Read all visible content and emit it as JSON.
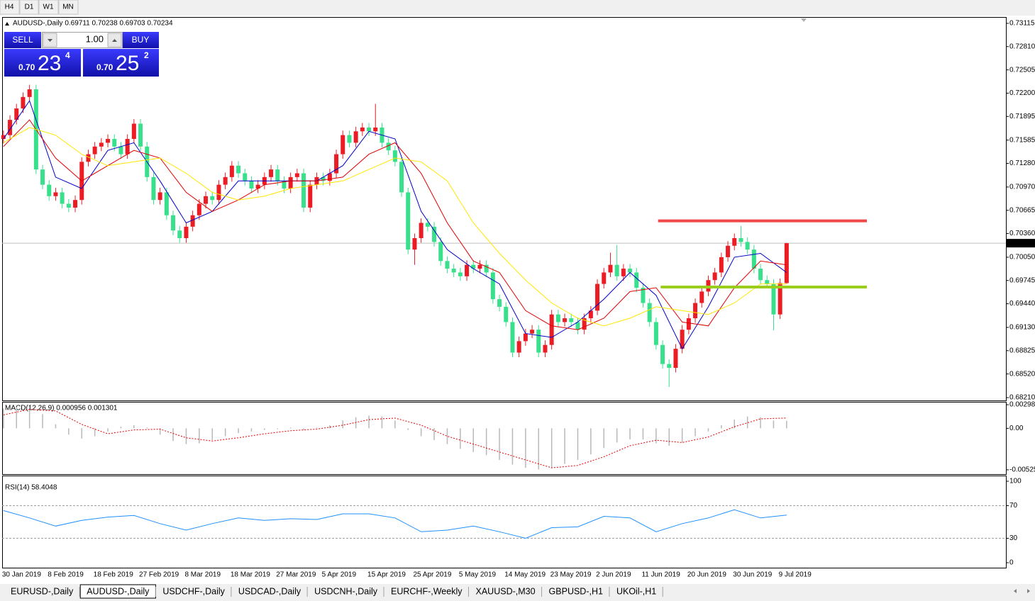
{
  "toolbar": {
    "timeframes": [
      "H4",
      "D1",
      "W1",
      "MN"
    ]
  },
  "trade_panel": {
    "sell": "SELL",
    "lot": "1.00",
    "buy": "BUY",
    "bid": {
      "prefix": "0.70",
      "big": "23",
      "small": "4"
    },
    "ask": {
      "prefix": "0.70",
      "big": "25",
      "small": "2"
    }
  },
  "tabs": [
    "EURUSD-,Daily",
    "AUDUSD-,Daily",
    "USDCHF-,Daily",
    "USDCAD-,Daily",
    "USDCNH-,Daily",
    "EURCHF-,Weekly",
    "XAUUSD-,M30",
    "GBPUSD-,H1",
    "UKOil-,H1"
  ],
  "active_tab": 1,
  "chart_data": [
    {
      "type": "candlestick",
      "title": "AUDUSD-,Daily  0.69711 0.70238 0.69703 0.70234",
      "categories": [
        "30 Jan 2019",
        null,
        null,
        null,
        null,
        null,
        null,
        "8 Feb 2019",
        null,
        null,
        null,
        null,
        null,
        null,
        "18 Feb 2019",
        null,
        null,
        null,
        null,
        null,
        null,
        "27 Feb 2019",
        null,
        null,
        null,
        null,
        null,
        null,
        "8 Mar 2019",
        null,
        null,
        null,
        null,
        null,
        null,
        "18 Mar 2019",
        null,
        null,
        null,
        null,
        null,
        null,
        "27 Mar 2019",
        null,
        null,
        null,
        null,
        null,
        null,
        "5 Apr 2019",
        null,
        null,
        null,
        null,
        null,
        null,
        "15 Apr 2019",
        null,
        null,
        null,
        null,
        null,
        null,
        "25 Apr 2019",
        null,
        null,
        null,
        null,
        null,
        null,
        "5 May 2019",
        null,
        null,
        null,
        null,
        null,
        null,
        "14 May 2019",
        null,
        null,
        null,
        null,
        null,
        null,
        "23 May 2019",
        null,
        null,
        null,
        null,
        null,
        null,
        "2 Jun 2019",
        null,
        null,
        null,
        null,
        null,
        null,
        "11 Jun 2019",
        null,
        null,
        null,
        null,
        null,
        null,
        "20 Jun 2019",
        null,
        null,
        null,
        null,
        null,
        null,
        "30 Jun 2019",
        null,
        null,
        null,
        null,
        null,
        null,
        "9 Jul 2019",
        null
      ],
      "open": [
        0.716,
        0.7165,
        0.7185,
        0.72,
        0.7215,
        0.7225,
        0.712,
        0.71,
        0.7085,
        0.709,
        0.7075,
        0.707,
        0.708,
        0.713,
        0.714,
        0.715,
        0.7155,
        0.716,
        0.715,
        0.714,
        0.716,
        0.718,
        0.715,
        0.711,
        0.708,
        0.709,
        0.706,
        0.704,
        0.703,
        0.7045,
        0.706,
        0.7075,
        0.7085,
        0.708,
        0.71,
        0.711,
        0.7125,
        0.7115,
        0.7105,
        0.7095,
        0.71,
        0.711,
        0.712,
        0.7105,
        0.7095,
        0.711,
        0.7115,
        0.707,
        0.71,
        0.711,
        0.7105,
        0.7115,
        0.714,
        0.7165,
        0.7155,
        0.717,
        0.7175,
        0.717,
        0.7175,
        0.7155,
        0.7145,
        0.713,
        0.709,
        0.7015,
        0.703,
        0.705,
        0.7045,
        0.7025,
        0.7,
        0.699,
        0.6985,
        0.698,
        0.6995,
        0.699,
        0.6995,
        0.6985,
        0.695,
        0.694,
        0.692,
        0.688,
        0.6895,
        0.6905,
        0.691,
        0.688,
        0.689,
        0.693,
        0.692,
        0.6925,
        0.692,
        0.691,
        0.6925,
        0.6935,
        0.697,
        0.6985,
        0.6995,
        0.698,
        0.699,
        0.6985,
        0.6965,
        0.6945,
        0.692,
        0.689,
        0.6865,
        0.686,
        0.6885,
        0.691,
        0.6925,
        0.6945,
        0.696,
        0.6975,
        0.6985,
        0.7005,
        0.702,
        0.703,
        0.7025,
        0.7015,
        0.699,
        0.6975,
        0.697,
        0.693,
        0.69711
      ],
      "high": [
        0.7171,
        0.7191,
        0.7206,
        0.7221,
        0.7231,
        0.7231,
        0.7126,
        0.7106,
        0.7096,
        0.7096,
        0.7081,
        0.7086,
        0.7136,
        0.7146,
        0.7156,
        0.7161,
        0.7166,
        0.7166,
        0.7156,
        0.7166,
        0.7186,
        0.7186,
        0.7156,
        0.7116,
        0.7096,
        0.7096,
        0.7066,
        0.7046,
        0.7051,
        0.7066,
        0.7081,
        0.7091,
        0.7091,
        0.7106,
        0.7116,
        0.7131,
        0.7131,
        0.7121,
        0.7111,
        0.7106,
        0.7116,
        0.7126,
        0.7126,
        0.7111,
        0.7116,
        0.7121,
        0.7121,
        0.7106,
        0.7116,
        0.7116,
        0.7121,
        0.7146,
        0.7171,
        0.7171,
        0.7176,
        0.7181,
        0.7181,
        0.7206,
        0.7181,
        0.7161,
        0.7151,
        0.7136,
        0.7096,
        0.7036,
        0.7056,
        0.7056,
        0.7051,
        0.7031,
        0.7006,
        0.6996,
        0.6991,
        0.7001,
        0.7001,
        0.7001,
        0.7001,
        0.6991,
        0.6956,
        0.6946,
        0.6926,
        0.6901,
        0.6911,
        0.6916,
        0.6916,
        0.6896,
        0.6936,
        0.6936,
        0.6931,
        0.6931,
        0.6926,
        0.6931,
        0.6941,
        0.6976,
        0.6991,
        0.7011,
        0.7021,
        0.6996,
        0.6996,
        0.6991,
        0.6971,
        0.6951,
        0.6926,
        0.6896,
        0.6871,
        0.6891,
        0.6916,
        0.6931,
        0.6951,
        0.6966,
        0.6981,
        0.6991,
        0.7011,
        0.7026,
        0.7036,
        0.7046,
        0.7031,
        0.7021,
        0.6996,
        0.6981,
        0.6976,
        0.6977,
        0.70238
      ],
      "low": [
        0.7154,
        0.7159,
        0.7179,
        0.7194,
        0.7209,
        0.7114,
        0.7094,
        0.7079,
        0.7079,
        0.7069,
        0.7064,
        0.7064,
        0.7074,
        0.7124,
        0.7134,
        0.7144,
        0.7149,
        0.7144,
        0.7134,
        0.7134,
        0.7154,
        0.7144,
        0.7104,
        0.7074,
        0.7074,
        0.7054,
        0.7034,
        0.7024,
        0.7024,
        0.7039,
        0.7054,
        0.7069,
        0.7074,
        0.7074,
        0.7094,
        0.7104,
        0.7109,
        0.7099,
        0.7089,
        0.7089,
        0.7094,
        0.7104,
        0.7099,
        0.7089,
        0.7089,
        0.7104,
        0.7064,
        0.7064,
        0.7094,
        0.7099,
        0.7099,
        0.7109,
        0.7134,
        0.7149,
        0.7149,
        0.7164,
        0.7164,
        0.7164,
        0.7149,
        0.7139,
        0.7124,
        0.7084,
        0.7009,
        0.6995,
        0.7024,
        0.7039,
        0.7019,
        0.6994,
        0.6984,
        0.6979,
        0.6974,
        0.6974,
        0.6984,
        0.6984,
        0.6979,
        0.6944,
        0.6934,
        0.6914,
        0.6874,
        0.6874,
        0.6889,
        0.6899,
        0.6874,
        0.6874,
        0.6884,
        0.6914,
        0.6914,
        0.6914,
        0.6904,
        0.6904,
        0.6919,
        0.6929,
        0.6964,
        0.6979,
        0.6974,
        0.6974,
        0.6979,
        0.6959,
        0.6939,
        0.6914,
        0.6884,
        0.6859,
        0.6835,
        0.6854,
        0.6879,
        0.6904,
        0.6919,
        0.6939,
        0.6954,
        0.6969,
        0.6979,
        0.6999,
        0.7014,
        0.7019,
        0.7009,
        0.6984,
        0.6969,
        0.6964,
        0.6909,
        0.6924,
        0.69703
      ],
      "close": [
        0.7165,
        0.7185,
        0.72,
        0.7215,
        0.7225,
        0.712,
        0.71,
        0.7085,
        0.709,
        0.7075,
        0.707,
        0.708,
        0.713,
        0.714,
        0.715,
        0.7155,
        0.716,
        0.715,
        0.714,
        0.716,
        0.718,
        0.715,
        0.711,
        0.708,
        0.709,
        0.706,
        0.704,
        0.703,
        0.7045,
        0.706,
        0.7075,
        0.7085,
        0.708,
        0.71,
        0.711,
        0.7125,
        0.7115,
        0.7105,
        0.7095,
        0.71,
        0.711,
        0.712,
        0.7105,
        0.7095,
        0.711,
        0.7115,
        0.707,
        0.71,
        0.711,
        0.7105,
        0.7115,
        0.714,
        0.7165,
        0.7155,
        0.717,
        0.7175,
        0.717,
        0.7175,
        0.7155,
        0.7145,
        0.713,
        0.709,
        0.7015,
        0.703,
        0.705,
        0.7045,
        0.7025,
        0.7,
        0.699,
        0.6985,
        0.698,
        0.6995,
        0.699,
        0.6995,
        0.6985,
        0.695,
        0.694,
        0.692,
        0.688,
        0.6895,
        0.6905,
        0.691,
        0.688,
        0.689,
        0.693,
        0.692,
        0.6925,
        0.692,
        0.691,
        0.6925,
        0.6935,
        0.697,
        0.6985,
        0.6995,
        0.698,
        0.699,
        0.6985,
        0.6965,
        0.6945,
        0.692,
        0.689,
        0.6865,
        0.686,
        0.6885,
        0.691,
        0.6925,
        0.6945,
        0.696,
        0.6975,
        0.6985,
        0.7005,
        0.702,
        0.703,
        0.7025,
        0.7015,
        0.699,
        0.6975,
        0.697,
        0.693,
        0.69711,
        0.70234
      ],
      "up_color": "#ec1c24",
      "down_color": "#38e08c",
      "overlay_x": [
        0,
        4,
        8,
        12,
        16,
        20,
        24,
        28,
        32,
        36,
        40,
        44,
        48,
        52,
        56,
        60,
        64,
        68,
        72,
        76,
        80,
        84,
        88,
        92,
        96,
        100,
        104,
        108,
        112,
        116,
        120
      ],
      "overlays": [
        {
          "color": "#0000c8",
          "values": [
            0.716,
            0.721,
            0.711,
            0.7095,
            0.7145,
            0.7155,
            0.7105,
            0.705,
            0.7065,
            0.7105,
            0.7105,
            0.7105,
            0.7105,
            0.7125,
            0.717,
            0.716,
            0.7065,
            0.7015,
            0.699,
            0.697,
            0.6905,
            0.69,
            0.692,
            0.695,
            0.6985,
            0.6955,
            0.6885,
            0.694,
            0.7005,
            0.701,
            0.6985
          ]
        },
        {
          "color": "#e00000",
          "values": [
            0.715,
            0.7185,
            0.7135,
            0.7105,
            0.7125,
            0.7145,
            0.7135,
            0.709,
            0.7065,
            0.708,
            0.71,
            0.7105,
            0.7105,
            0.711,
            0.714,
            0.7155,
            0.7115,
            0.705,
            0.7,
            0.6985,
            0.6935,
            0.6915,
            0.691,
            0.6925,
            0.696,
            0.6965,
            0.692,
            0.6915,
            0.6965,
            0.7,
            0.6995
          ]
        },
        {
          "color": "#ffe600",
          "values": [
            0.7155,
            0.7175,
            0.7165,
            0.714,
            0.7125,
            0.713,
            0.7135,
            0.7115,
            0.709,
            0.708,
            0.7085,
            0.7095,
            0.71,
            0.7105,
            0.712,
            0.7135,
            0.713,
            0.7105,
            0.705,
            0.701,
            0.6975,
            0.6945,
            0.6925,
            0.6915,
            0.6925,
            0.694,
            0.6935,
            0.693,
            0.6945,
            0.697,
            0.697
          ]
        }
      ],
      "hlines": [
        {
          "value": 0.70527,
          "color": "#f04848",
          "start": 100.3,
          "end": 132.3
        },
        {
          "value": 0.69659,
          "color": "#9acd1e",
          "start": 100.7,
          "end": 132.3
        }
      ],
      "xlim": [
        -0.2,
        153.6
      ],
      "ylim": [
        0.68173,
        0.73198
      ],
      "yticks": [
        {
          "value": 0.73115,
          "label": "0.73115"
        },
        {
          "value": 0.7281,
          "label": "0.72810"
        },
        {
          "value": 0.72505,
          "label": "0.72505"
        },
        {
          "value": 0.722,
          "label": "0.72200"
        },
        {
          "value": 0.71895,
          "label": "0.71895"
        },
        {
          "value": 0.71585,
          "label": "0.71585"
        },
        {
          "value": 0.7128,
          "label": "0.71280"
        },
        {
          "value": 0.7097,
          "label": "0.70970"
        },
        {
          "value": 0.70665,
          "label": "0.70665"
        },
        {
          "value": 0.7036,
          "label": "0.70360"
        },
        {
          "value": 0.7005,
          "label": "0.70050"
        },
        {
          "value": 0.69745,
          "label": "0.69745"
        },
        {
          "value": 0.6944,
          "label": "0.69440"
        },
        {
          "value": 0.6913,
          "label": "0.69130"
        },
        {
          "value": 0.68825,
          "label": "0.68825"
        },
        {
          "value": 0.6852,
          "label": "0.68520"
        },
        {
          "value": 0.6821,
          "label": "0.68210"
        }
      ]
    },
    {
      "type": "macd",
      "title": "MACD(12,26,9) 0.000956 0.001301",
      "hist_x": [
        0,
        2,
        4,
        6,
        8,
        10,
        12,
        14,
        16,
        18,
        20,
        22,
        24,
        26,
        28,
        30,
        32,
        34,
        36,
        38,
        40,
        42,
        44,
        46,
        48,
        50,
        52,
        54,
        56,
        58,
        60,
        62,
        64,
        66,
        68,
        70,
        72,
        74,
        76,
        78,
        80,
        82,
        84,
        86,
        88,
        90,
        92,
        94,
        96,
        98,
        100,
        102,
        104,
        106,
        108,
        110,
        112,
        114,
        116,
        118,
        120
      ],
      "histogram": [
        0.0025,
        0.0027,
        0.0028,
        0.0018,
        0.0005,
        -0.0008,
        -0.0013,
        -0.001,
        -0.0004,
        0.0002,
        0.0004,
        0.0001,
        -0.0008,
        -0.0016,
        -0.002,
        -0.0019,
        -0.0015,
        -0.001,
        -0.0006,
        -0.0004,
        -0.0002,
        -0.0001,
        0.0001,
        -0.0002,
        0.0001,
        0.0004,
        0.001,
        0.0014,
        0.0016,
        0.0015,
        0.001,
        -0.0002,
        -0.001,
        -0.0015,
        -0.002,
        -0.0026,
        -0.003,
        -0.0034,
        -0.004,
        -0.0046,
        -0.005,
        -0.0052,
        -0.005,
        -0.0045,
        -0.004,
        -0.0033,
        -0.0025,
        -0.0018,
        -0.0014,
        -0.0014,
        -0.0019,
        -0.0022,
        -0.0018,
        -0.001,
        -0.0004,
        0.0004,
        0.0011,
        0.0015,
        0.0014,
        0.001,
        0.000956
      ],
      "signal_x": [
        0,
        4,
        8,
        12,
        16,
        20,
        24,
        28,
        32,
        36,
        40,
        44,
        48,
        52,
        56,
        60,
        64,
        68,
        72,
        76,
        80,
        84,
        88,
        92,
        96,
        100,
        104,
        108,
        112,
        116,
        120
      ],
      "signal": [
        0.0017,
        0.0024,
        0.0022,
        0.0005,
        -0.0007,
        -0.0002,
        -0.0001,
        -0.0012,
        -0.0016,
        -0.0012,
        -0.0007,
        -0.0003,
        -0.0001,
        0.0004,
        0.0011,
        0.0013,
        0.0004,
        -0.001,
        -0.002,
        -0.003,
        -0.004,
        -0.005,
        -0.0047,
        -0.0036,
        -0.0022,
        -0.0015,
        -0.0018,
        -0.0011,
        0.0002,
        0.0012,
        0.001301
      ],
      "hist_color": "#b8b8b8",
      "signal_color": "#e00000",
      "xlim": [
        -0.2,
        153.6
      ],
      "ylim": [
        -0.0058,
        0.00335
      ],
      "yticks": [
        0.002984,
        {
          "value": 0,
          "label": "0.00"
        },
        -0.005254
      ]
    },
    {
      "type": "line",
      "title": "RSI(14) 58.4048",
      "x": [
        0,
        4,
        8,
        12,
        16,
        20,
        24,
        28,
        32,
        36,
        40,
        44,
        48,
        52,
        56,
        60,
        64,
        68,
        72,
        76,
        80,
        84,
        88,
        92,
        96,
        100,
        104,
        108,
        112,
        116,
        120
      ],
      "values": [
        64,
        55,
        45,
        52,
        56,
        58,
        48,
        40,
        48,
        55,
        52,
        54,
        53,
        60,
        60,
        55,
        38,
        40,
        45,
        38,
        30,
        43,
        44,
        57,
        55,
        38,
        48,
        55,
        65,
        55,
        58.4048
      ],
      "color": "#1e90ff",
      "levels": [
        30,
        70
      ],
      "xlim": [
        -0.2,
        153.6
      ],
      "ylim": [
        0,
        100
      ],
      "yticks": [
        0,
        30,
        70,
        100
      ]
    }
  ]
}
